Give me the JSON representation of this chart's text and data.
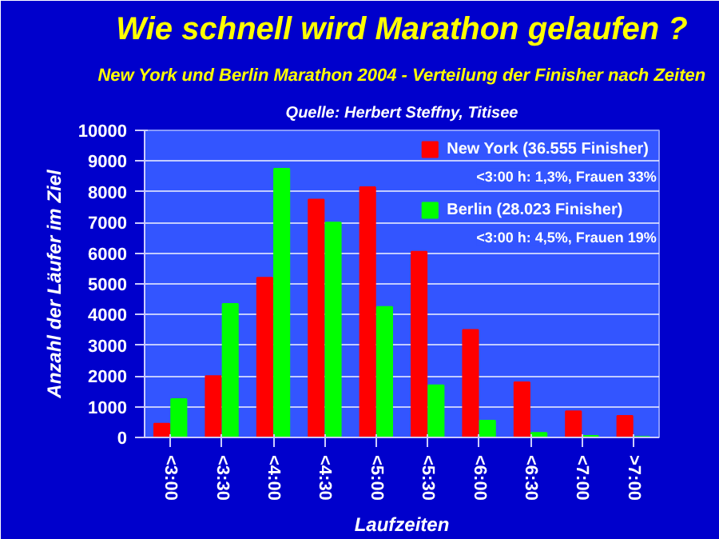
{
  "chart_data": {
    "type": "bar",
    "title": "Wie schnell wird Marathon gelaufen ?",
    "subtitle": "New York und Berlin Marathon 2004 - Verteilung der Finisher nach Zeiten",
    "annotations": [
      "Quelle: Herbert Steffny, Titisee",
      "<3:00 h: 1,3%, Frauen 33%",
      "<3:00 h: 4,5%, Frauen 19%"
    ],
    "xlabel": "Laufzeiten",
    "ylabel": "Anzahl der Läufer im Ziel",
    "categories": [
      "<3:00",
      "<3:30",
      "<4:00",
      "<4:30",
      "<5:00",
      "<5:30",
      "<6:00",
      "<6:30",
      "<7:00",
      ">7:00"
    ],
    "series": [
      {
        "name": "New York (36.555 Finisher)",
        "color": "#ff0000",
        "values": [
          450,
          2000,
          5200,
          7750,
          8150,
          6050,
          3500,
          1800,
          850,
          700
        ]
      },
      {
        "name": "Berlin (28.023 Finisher)",
        "color": "#00ff00",
        "values": [
          1250,
          4350,
          8750,
          7000,
          4250,
          1700,
          550,
          150,
          50,
          20
        ]
      }
    ],
    "ylim": [
      0,
      10000
    ],
    "yticks": [
      0,
      1000,
      2000,
      3000,
      4000,
      5000,
      6000,
      7000,
      8000,
      9000,
      10000
    ],
    "grid": "y",
    "legend": "top right"
  }
}
